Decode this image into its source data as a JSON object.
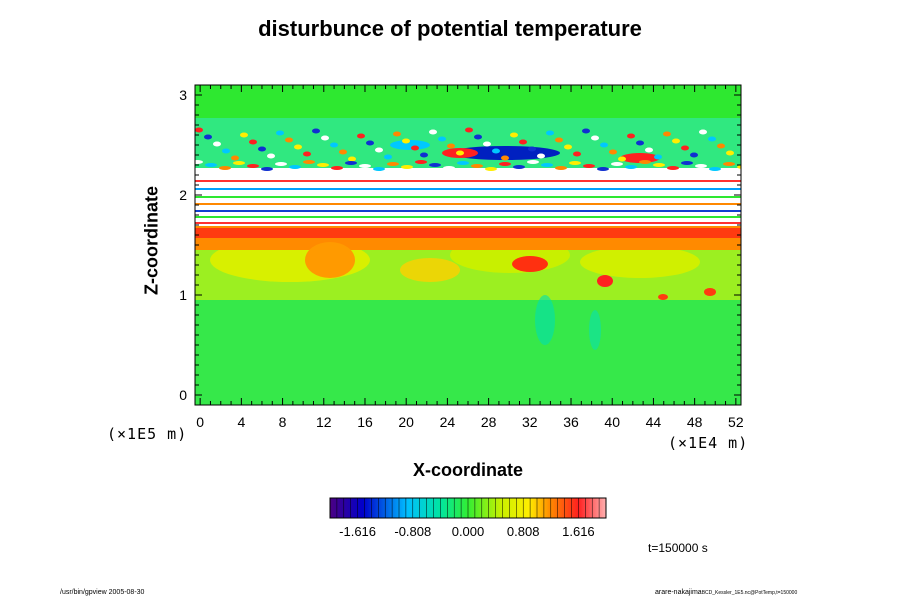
{
  "chart_data": {
    "type": "heatmap",
    "title": "disturbunce of potential temperature",
    "xlabel": "X-coordinate",
    "ylabel": "Z-coordinate",
    "x_unit": "(×1E4 m)",
    "z_unit": "(×1E5 m)",
    "xlim": [
      -0.5,
      52.5
    ],
    "ylim": [
      -0.1,
      3.1
    ],
    "x_ticks": [
      "0",
      "4",
      "8",
      "12",
      "16",
      "20",
      "24",
      "28",
      "32",
      "36",
      "40",
      "44",
      "48",
      "52"
    ],
    "y_ticks": [
      "0",
      "1",
      "2",
      "3"
    ],
    "colorbar": {
      "range": [
        -2.02,
        2.02
      ],
      "tick_values": [
        -1.616,
        -0.808,
        0.0,
        0.808,
        1.616
      ],
      "tick_labels": [
        "-1.616",
        "-0.808",
        "0.000",
        "0.808",
        "1.616"
      ]
    },
    "features": [
      {
        "description": "upper wave band",
        "z_range": [
          2.3,
          2.6
        ],
        "values": "oscillating ±1.6"
      },
      {
        "description": "saturated stratified layers",
        "z_range": [
          1.75,
          2.3
        ],
        "values": "beyond color range"
      },
      {
        "description": "warm disturbance layer",
        "z_range": [
          1.0,
          1.75
        ],
        "values": "0.8 to 1.6"
      },
      {
        "description": "lower domain",
        "z_range": [
          0.0,
          1.0
        ],
        "values": "near 0"
      }
    ],
    "grid": false,
    "legend_position": "bottom-center colorbar"
  },
  "annotations": {
    "time": "t=150000 s",
    "footer_left": "/usr/bin/gpview 2005-08-30",
    "footer_right_main": "arare-nakajima",
    "footer_right_small": "BCD_Kessler_1E5.nc@PotTemp,t=150000"
  }
}
